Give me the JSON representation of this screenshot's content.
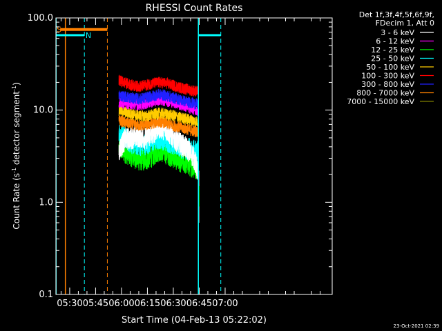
{
  "chart_data": {
    "type": "line",
    "title": "RHESSI Count Rates",
    "xlabel": "Start Time (04-Feb-13 05:22:02)",
    "ylabel_main": "Count Rate (s",
    "ylabel_sup": "-1",
    "ylabel_mid": " detector segment",
    "ylabel_sup2": "-1",
    "ylabel_end": ")",
    "y_scale": "log",
    "ylim": [
      0.1,
      100
    ],
    "y_ticks": [
      {
        "value": 0.1,
        "label": "0.1"
      },
      {
        "value": 1,
        "label": "1.0"
      },
      {
        "value": 10,
        "label": "10.0"
      },
      {
        "value": 100,
        "label": "100.0"
      }
    ],
    "xlim_minutes": [
      22.03,
      182.0
    ],
    "x_ticks": [
      {
        "minute": 30,
        "label": "05:30"
      },
      {
        "minute": 45,
        "label": "05:45"
      },
      {
        "minute": 60,
        "label": "06:00"
      },
      {
        "minute": 75,
        "label": "06:15"
      },
      {
        "minute": 90,
        "label": "06:30"
      },
      {
        "minute": 105,
        "label": "06:45"
      },
      {
        "minute": 120,
        "label": "07:00"
      }
    ],
    "legend": {
      "header1": "Det 1f,3f,4f,5f,6f,9f,",
      "header2": "FDecim 1, Att 0",
      "position": "right"
    },
    "series": [
      {
        "name": "3 - 6 keV",
        "color": "#ffffff",
        "trace": [
          [
            58.5,
            3.6
          ],
          [
            62,
            4.8
          ],
          [
            66,
            5.0
          ],
          [
            70,
            5.2
          ],
          [
            74,
            4.9
          ],
          [
            78,
            5.6
          ],
          [
            82,
            6.5
          ],
          [
            86,
            6.1
          ],
          [
            90,
            5.0
          ],
          [
            94,
            4.3
          ],
          [
            98,
            3.8
          ],
          [
            102,
            3.0
          ],
          [
            104.5,
            2.0
          ]
        ]
      },
      {
        "name": "6 - 12 keV",
        "color": "#ff00ff",
        "trace": [
          [
            58.5,
            12.0
          ],
          [
            62,
            12.0
          ],
          [
            66,
            11.6
          ],
          [
            70,
            11.4
          ],
          [
            74,
            11.8
          ],
          [
            78,
            12.3
          ],
          [
            82,
            13.0
          ],
          [
            86,
            12.6
          ],
          [
            90,
            12.2
          ],
          [
            94,
            11.4
          ],
          [
            98,
            10.8
          ],
          [
            102,
            10.2
          ],
          [
            104.5,
            9.8
          ]
        ]
      },
      {
        "name": "12 - 25 keV",
        "color": "#00ff00",
        "trace": [
          [
            58.5,
            3.9
          ],
          [
            62,
            3.5
          ],
          [
            66,
            3.2
          ],
          [
            70,
            2.9
          ],
          [
            74,
            2.9
          ],
          [
            78,
            3.2
          ],
          [
            82,
            3.7
          ],
          [
            86,
            3.4
          ],
          [
            90,
            3.1
          ],
          [
            94,
            2.8
          ],
          [
            98,
            2.6
          ],
          [
            102,
            2.4
          ],
          [
            104.5,
            2.3
          ]
        ]
      },
      {
        "name": "25 - 50 keV",
        "color": "#00ffff",
        "trace": [
          [
            58.5,
            5.6
          ],
          [
            62,
            5.0
          ],
          [
            66,
            4.4
          ],
          [
            70,
            4.2
          ],
          [
            74,
            4.3
          ],
          [
            78,
            4.6
          ],
          [
            82,
            5.0
          ],
          [
            86,
            4.7
          ],
          [
            90,
            4.3
          ],
          [
            94,
            4.0
          ],
          [
            98,
            3.8
          ],
          [
            102,
            3.6
          ],
          [
            104.5,
            3.5
          ]
        ]
      },
      {
        "name": "50 - 100 keV",
        "color": "#ffcc00",
        "trace": [
          [
            58.5,
            10.0
          ],
          [
            62,
            9.5
          ],
          [
            66,
            9.0
          ],
          [
            70,
            8.7
          ],
          [
            74,
            8.6
          ],
          [
            78,
            8.9
          ],
          [
            82,
            9.3
          ],
          [
            86,
            9.0
          ],
          [
            90,
            8.7
          ],
          [
            94,
            8.3
          ],
          [
            98,
            8.0
          ],
          [
            102,
            7.6
          ],
          [
            104.5,
            7.4
          ]
        ]
      },
      {
        "name": "100 - 300 keV",
        "color": "#ff0000",
        "trace": [
          [
            58.5,
            21.0
          ],
          [
            62,
            19.8
          ],
          [
            66,
            18.6
          ],
          [
            70,
            18.0
          ],
          [
            74,
            18.6
          ],
          [
            78,
            19.5
          ],
          [
            82,
            20.0
          ],
          [
            86,
            19.5
          ],
          [
            90,
            18.5
          ],
          [
            94,
            17.5
          ],
          [
            98,
            16.8
          ],
          [
            102,
            16.2
          ],
          [
            104.5,
            15.8
          ]
        ]
      },
      {
        "name": "300 - 800 keV",
        "color": "#2020ff",
        "trace": [
          [
            58.5,
            14.5
          ],
          [
            62,
            14.0
          ],
          [
            66,
            13.5
          ],
          [
            70,
            13.2
          ],
          [
            74,
            13.6
          ],
          [
            78,
            14.2
          ],
          [
            82,
            14.8
          ],
          [
            86,
            14.3
          ],
          [
            90,
            13.6
          ],
          [
            94,
            12.9
          ],
          [
            98,
            12.3
          ],
          [
            102,
            11.8
          ],
          [
            104.5,
            11.5
          ]
        ]
      },
      {
        "name": "800 - 7000 keV",
        "color": "#ff8000",
        "trace": [
          [
            58.5,
            7.8
          ],
          [
            62,
            7.3
          ],
          [
            66,
            7.0
          ],
          [
            70,
            6.8
          ],
          [
            74,
            6.9
          ],
          [
            78,
            7.2
          ],
          [
            82,
            7.5
          ],
          [
            86,
            7.2
          ],
          [
            90,
            6.8
          ],
          [
            94,
            6.5
          ],
          [
            98,
            6.2
          ],
          [
            102,
            5.9
          ],
          [
            104.5,
            5.8
          ]
        ]
      },
      {
        "name": "7000 - 15000 keV",
        "color": "#808000",
        "trace": []
      }
    ],
    "markers": {
      "saa_label": "S",
      "night_label": "N",
      "saa_color": "#ff8000",
      "night_color": "#00ffff",
      "saa_bar_level": 75,
      "night_bar_level": 65
    },
    "footer_timestamp": "23-Oct-2021 02:39"
  }
}
